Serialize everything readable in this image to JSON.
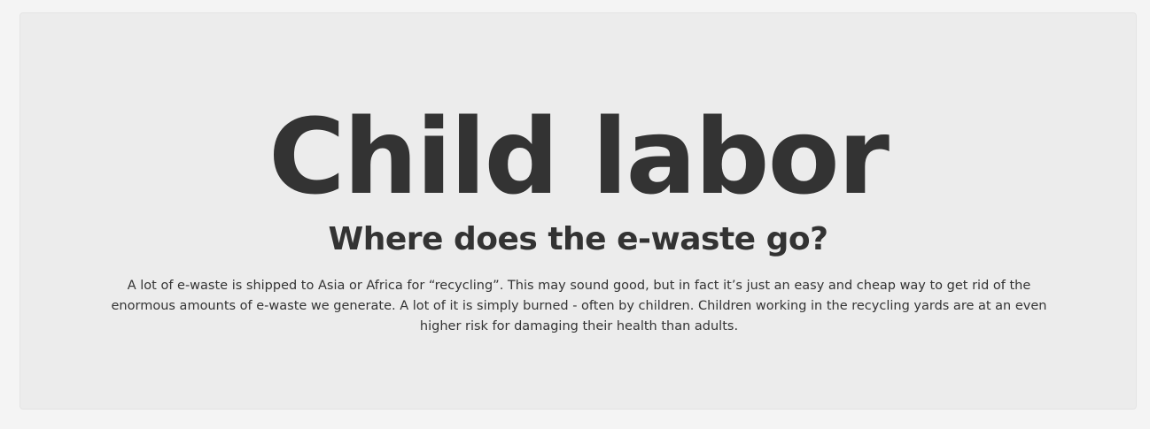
{
  "section": {
    "title": "Child labor",
    "subtitle": "Where does the e-waste go?",
    "body": "A lot of e-waste is shipped to Asia or Africa for “recycling”. This may sound good, but in fact it’s just an easy and cheap way to get rid of the enormous amounts of e-waste we generate. A lot of it is simply burned - often by children. Children working in the recycling yards are at an even higher risk for damaging their health than adults."
  },
  "colors": {
    "page_background": "#f4f4f4",
    "card_background": "#ececec",
    "text": "#333333"
  }
}
